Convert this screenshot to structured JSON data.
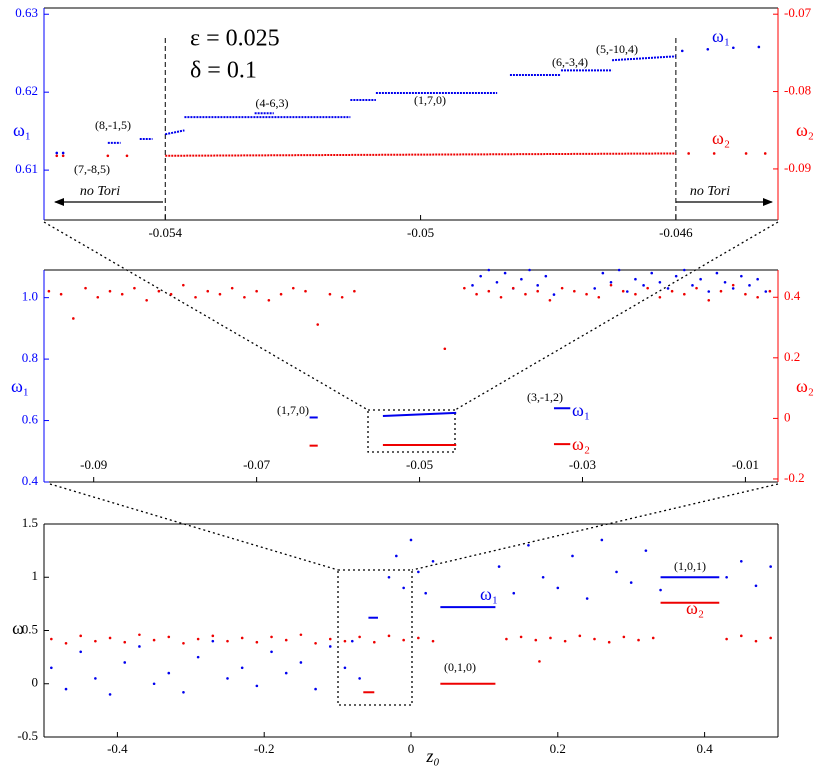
{
  "chart_data": [
    {
      "type": "scatter",
      "xlim": [
        -0.0559,
        -0.0444
      ],
      "xticks": [
        -0.054,
        -0.05,
        -0.046
      ],
      "ylim": [
        0.6036,
        0.6308
      ],
      "yticks": [
        0.61,
        0.62,
        0.63
      ],
      "y2lim": [
        -0.0966,
        -0.0692
      ],
      "y2ticks": [
        -0.07,
        -0.08,
        -0.09
      ],
      "ylabel": "ω₁",
      "y2label": "ω₂",
      "ycolor": "#0000ff",
      "y2color": "#ff0000",
      "annotations": [
        "ε = 0.025",
        "δ = 0.1",
        "(8,-1,5)",
        "(7,-8,5)",
        "(4-6,3)",
        "(1,7,0)",
        "(6,-3,4)",
        "(5,-10,4)",
        "no Tori",
        "no Tori"
      ],
      "series": [
        {
          "name": "ω₁",
          "color": "#0000ee",
          "axis": "y",
          "x": [
            -0.0557,
            -0.0556,
            -0.0459,
            -0.0455,
            -0.0451,
            -0.0447
          ],
          "values": [
            0.6122,
            0.6122,
            0.6253,
            0.6255,
            0.6257,
            0.6258
          ],
          "segments": [
            {
              "x": [
                -0.0549,
                -0.0547
              ],
              "values": [
                0.6135,
                0.6135
              ]
            },
            {
              "x": [
                -0.0544,
                -0.0542
              ],
              "values": [
                0.614,
                0.614
              ]
            },
            {
              "x": [
                -0.054,
                -0.0537
              ],
              "values": [
                0.6146,
                0.6151
              ]
            },
            {
              "x": [
                -0.0537,
                -0.0511
              ],
              "values": [
                0.6168,
                0.6168
              ]
            },
            {
              "x": [
                -0.0526,
                -0.0523
              ],
              "values": [
                0.6173,
                0.6173
              ]
            },
            {
              "x": [
                -0.0511,
                -0.0507
              ],
              "values": [
                0.619,
                0.619
              ]
            },
            {
              "x": [
                -0.0507,
                -0.0488
              ],
              "values": [
                0.6199,
                0.6199
              ]
            },
            {
              "x": [
                -0.0486,
                -0.0478
              ],
              "values": [
                0.6222,
                0.6222
              ]
            },
            {
              "x": [
                -0.0478,
                -0.047
              ],
              "values": [
                0.6228,
                0.6228
              ]
            },
            {
              "x": [
                -0.047,
                -0.046
              ],
              "values": [
                0.6241,
                0.6246
              ]
            }
          ]
        },
        {
          "name": "ω₂",
          "color": "#ee0000",
          "axis": "y2",
          "x": [
            -0.0557,
            -0.0556,
            -0.0549,
            -0.0546,
            -0.0458,
            -0.0454,
            -0.0449,
            -0.0446
          ],
          "values": [
            -0.0883,
            -0.0883,
            -0.0883,
            -0.0883,
            -0.088,
            -0.088,
            -0.088,
            -0.088
          ],
          "segments": [
            {
              "x": [
                -0.054,
                -0.046
              ],
              "values": [
                -0.0883,
                -0.088
              ]
            }
          ]
        }
      ]
    },
    {
      "type": "scatter",
      "xlim": [
        -0.0961,
        -0.006
      ],
      "xticks": [
        -0.09,
        -0.07,
        -0.05,
        -0.03,
        -0.01
      ],
      "ylim": [
        0.4,
        1.09
      ],
      "yticks": [
        0.4,
        0.6,
        0.8,
        {
          "value": 1,
          "label": "1.0"
        }
      ],
      "y2lim": [
        -0.21,
        0.49
      ],
      "y2ticks": [
        -0.2,
        0,
        0.2,
        0.4
      ],
      "ylabel": "ω₁",
      "y2label": "ω₂",
      "ycolor": "#0000ff",
      "y2color": "#ff0000",
      "annotations": [
        "(1,7,0)",
        "(3,-1,2)"
      ],
      "series": [
        {
          "name": "ω₁",
          "color": "#0000ee",
          "axis": "y",
          "x": [
            -0.0435,
            -0.0425,
            -0.0415,
            -0.0405,
            -0.0395,
            -0.0385,
            -0.0375,
            -0.0365,
            -0.0355,
            -0.0345,
            -0.0335,
            -0.0285,
            -0.0275,
            -0.0265,
            -0.0255,
            -0.0245,
            -0.0235,
            -0.0225,
            -0.0215,
            -0.0205,
            -0.0195,
            -0.0185,
            -0.0175,
            -0.0165,
            -0.0155,
            -0.0145,
            -0.0135,
            -0.0125,
            -0.0115,
            -0.0105,
            -0.0095,
            -0.0085,
            -0.0075
          ],
          "values": [
            1.04,
            1.07,
            1.09,
            1.05,
            1.08,
            1.03,
            1.06,
            1.09,
            1.04,
            1.07,
            1.01,
            1.03,
            1.08,
            1.05,
            1.09,
            1.02,
            1.06,
            1.04,
            1.08,
            1.05,
            1.03,
            1.07,
            1.09,
            1.04,
            1.06,
            1.02,
            1.08,
            1.05,
            1.03,
            1.07,
            1.04,
            1.06,
            1.02
          ],
          "segments": [
            {
              "x": [
                -0.0635,
                -0.0625
              ],
              "values": [
                0.61,
                0.61
              ]
            },
            {
              "x": [
                -0.0545,
                -0.0455
              ],
              "values": [
                0.615,
                0.625
              ]
            },
            {
              "x": [
                -0.0335,
                -0.0315
              ],
              "values": [
                0.64,
                0.64
              ]
            }
          ]
        },
        {
          "name": "ω₂",
          "color": "#ee0000",
          "axis": "y2",
          "x": [
            -0.0955,
            -0.094,
            -0.0925,
            -0.091,
            -0.0895,
            -0.088,
            -0.0865,
            -0.085,
            -0.0835,
            -0.082,
            -0.0805,
            -0.079,
            -0.0775,
            -0.076,
            -0.0745,
            -0.073,
            -0.0715,
            -0.07,
            -0.0685,
            -0.067,
            -0.0655,
            -0.064,
            -0.0625,
            -0.061,
            -0.0595,
            -0.058,
            -0.0469,
            -0.0445,
            -0.043,
            -0.0415,
            -0.04,
            -0.0385,
            -0.037,
            -0.0355,
            -0.034,
            -0.0325,
            -0.031,
            -0.0295,
            -0.028,
            -0.0265,
            -0.025,
            -0.0235,
            -0.022,
            -0.0205,
            -0.019,
            -0.0175,
            -0.016,
            -0.0145,
            -0.013,
            -0.0115,
            -0.01,
            -0.0085,
            -0.007
          ],
          "values": [
            0.42,
            0.41,
            0.33,
            0.43,
            0.4,
            0.42,
            0.41,
            0.43,
            0.39,
            0.42,
            0.41,
            0.44,
            0.4,
            0.42,
            0.41,
            0.43,
            0.4,
            0.42,
            0.39,
            0.41,
            0.43,
            0.42,
            0.31,
            0.41,
            0.4,
            0.42,
            0.23,
            0.43,
            0.41,
            0.42,
            0.4,
            0.43,
            0.41,
            0.42,
            0.39,
            0.43,
            0.42,
            0.41,
            0.4,
            0.44,
            0.42,
            0.41,
            0.43,
            0.4,
            0.42,
            0.41,
            0.43,
            0.39,
            0.42,
            0.44,
            0.41,
            0.4,
            0.42
          ],
          "segments": [
            {
              "x": [
                -0.0635,
                -0.0625
              ],
              "values": [
                -0.09,
                -0.09
              ]
            },
            {
              "x": [
                -0.0545,
                -0.0455
              ],
              "values": [
                -0.088,
                -0.088
              ]
            },
            {
              "x": [
                -0.0335,
                -0.0315
              ],
              "values": [
                -0.085,
                -0.085
              ]
            }
          ]
        }
      ]
    },
    {
      "type": "scatter",
      "xlim": [
        -0.5,
        0.5
      ],
      "xticks": [
        -0.4,
        -0.2,
        0,
        0.2,
        0.4
      ],
      "ylim": [
        -0.5,
        1.5
      ],
      "yticks": [
        -0.5,
        0,
        0.5,
        1,
        1.5
      ],
      "ylabel": "ω",
      "xlabel": "z₀",
      "annotations": [
        "(0,1,0)",
        "(1,0,1)"
      ],
      "series": [
        {
          "name": "ω₁",
          "color": "#0000ee",
          "axis": "y",
          "x": [
            -0.49,
            -0.47,
            -0.45,
            -0.43,
            -0.41,
            -0.39,
            -0.37,
            -0.35,
            -0.33,
            -0.31,
            -0.29,
            -0.27,
            -0.25,
            -0.23,
            -0.21,
            -0.19,
            -0.17,
            -0.15,
            -0.13,
            -0.11,
            -0.09,
            -0.08,
            -0.07,
            -0.03,
            -0.02,
            -0.01,
            0,
            0.01,
            0.02,
            0.03,
            0.12,
            0.14,
            0.16,
            0.18,
            0.2,
            0.22,
            0.24,
            0.26,
            0.28,
            0.3,
            0.32,
            0.34,
            0.43,
            0.45,
            0.47,
            0.49
          ],
          "values": [
            0.15,
            -0.05,
            0.3,
            0.05,
            -0.1,
            0.2,
            0.35,
            0,
            0.1,
            -0.08,
            0.25,
            0.4,
            0.05,
            0.15,
            -0.02,
            0.3,
            0.1,
            0.2,
            -0.05,
            0.35,
            0.15,
            0.4,
            0.05,
            1,
            1.2,
            0.9,
            1.35,
            1.05,
            0.85,
            1.15,
            1.1,
            0.85,
            1.3,
            1,
            0.9,
            1.2,
            0.8,
            1.35,
            1.05,
            0.95,
            1.25,
            0.88,
            1,
            1.15,
            0.92,
            1.1
          ],
          "segments": [
            {
              "x": [
                -0.058,
                -0.045
              ],
              "values": [
                0.62,
                0.62
              ]
            },
            {
              "x": [
                0.04,
                0.115
              ],
              "values": [
                0.72,
                0.72
              ]
            },
            {
              "x": [
                0.34,
                0.42
              ],
              "values": [
                1,
                1
              ]
            }
          ]
        },
        {
          "name": "ω₂",
          "color": "#ee0000",
          "axis": "y",
          "x": [
            -0.49,
            -0.47,
            -0.45,
            -0.43,
            -0.41,
            -0.39,
            -0.37,
            -0.35,
            -0.33,
            -0.31,
            -0.29,
            -0.27,
            -0.25,
            -0.23,
            -0.21,
            -0.19,
            -0.17,
            -0.15,
            -0.13,
            -0.11,
            -0.09,
            -0.07,
            -0.05,
            -0.03,
            -0.01,
            0.01,
            0.03,
            0.13,
            0.15,
            0.17,
            0.175,
            0.19,
            0.21,
            0.23,
            0.25,
            0.27,
            0.29,
            0.31,
            0.33,
            0.43,
            0.45,
            0.47,
            0.49
          ],
          "values": [
            0.42,
            0.38,
            0.45,
            0.4,
            0.43,
            0.39,
            0.46,
            0.41,
            0.44,
            0.38,
            0.42,
            0.45,
            0.4,
            0.43,
            0.39,
            0.44,
            0.41,
            0.46,
            0.38,
            0.42,
            0.4,
            0.44,
            0.39,
            0.45,
            0.41,
            0.43,
            0.4,
            0.42,
            0.44,
            0.41,
            0.21,
            0.43,
            0.4,
            0.45,
            0.42,
            0.39,
            0.44,
            0.41,
            0.43,
            0.42,
            0.45,
            0.4,
            0.43
          ],
          "segments": [
            {
              "x": [
                -0.065,
                -0.05
              ],
              "values": [
                -0.08,
                -0.08
              ]
            },
            {
              "x": [
                0.04,
                0.115
              ],
              "values": [
                0,
                0
              ]
            },
            {
              "x": [
                0.34,
                0.42
              ],
              "values": [
                0.76,
                0.76
              ]
            }
          ]
        }
      ]
    }
  ]
}
